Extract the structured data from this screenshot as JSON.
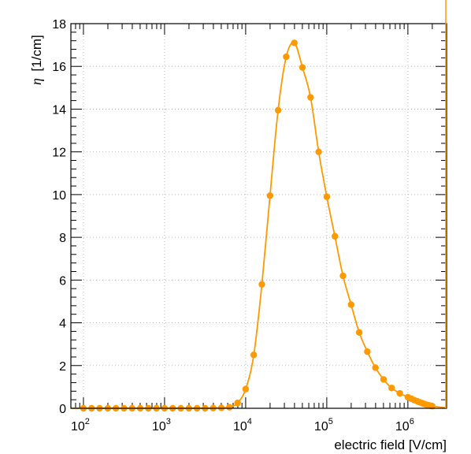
{
  "chart_data": {
    "type": "line",
    "xscale": "log",
    "xlim": [
      70,
      3000000
    ],
    "ylim": [
      0,
      18
    ],
    "ylabel_symbol": "η",
    "ylabel_unit": "[1/cm]",
    "xlabel": "electric field [V/cm]",
    "yticks": [
      0,
      2,
      4,
      6,
      8,
      10,
      12,
      14,
      16,
      18
    ],
    "xticks": [
      {
        "base": "10",
        "exp": "2",
        "value": 100
      },
      {
        "base": "10",
        "exp": "3",
        "value": 1000
      },
      {
        "base": "10",
        "exp": "4",
        "value": 10000
      },
      {
        "base": "10",
        "exp": "5",
        "value": 100000
      },
      {
        "base": "10",
        "exp": "6",
        "value": 1000000
      }
    ],
    "grid": true,
    "color": "#ff9900",
    "series": [
      {
        "x": [
          100,
          126,
          158,
          200,
          251,
          316,
          398,
          501,
          631,
          794,
          1000,
          1259,
          1585,
          1995,
          2512,
          3162,
          3981,
          5012,
          6310,
          7943,
          10000,
          12589,
          15849,
          19953,
          25119,
          31623,
          39811,
          50119,
          63096,
          79433,
          100000,
          125893,
          158489,
          199526,
          251189,
          316228,
          398107,
          501187,
          630957,
          794328,
          1000000,
          1100000,
          1200000,
          1300000,
          1400000,
          1500000,
          1600000,
          1700000,
          1800000,
          1900000,
          2000000
        ],
        "y": [
          0,
          0,
          0,
          0,
          0,
          0,
          0,
          0,
          0,
          0,
          0,
          0,
          0,
          0,
          0,
          0,
          0.01,
          0.02,
          0.05,
          0.25,
          0.9,
          2.5,
          5.8,
          9.95,
          13.95,
          16.45,
          17.1,
          15.95,
          14.55,
          12.0,
          9.9,
          8.05,
          6.2,
          4.85,
          3.55,
          2.65,
          1.9,
          1.35,
          0.95,
          0.7,
          0.52,
          0.45,
          0.38,
          0.33,
          0.28,
          0.24,
          0.2,
          0.17,
          0.14,
          0.12,
          0.1
        ]
      }
    ]
  }
}
